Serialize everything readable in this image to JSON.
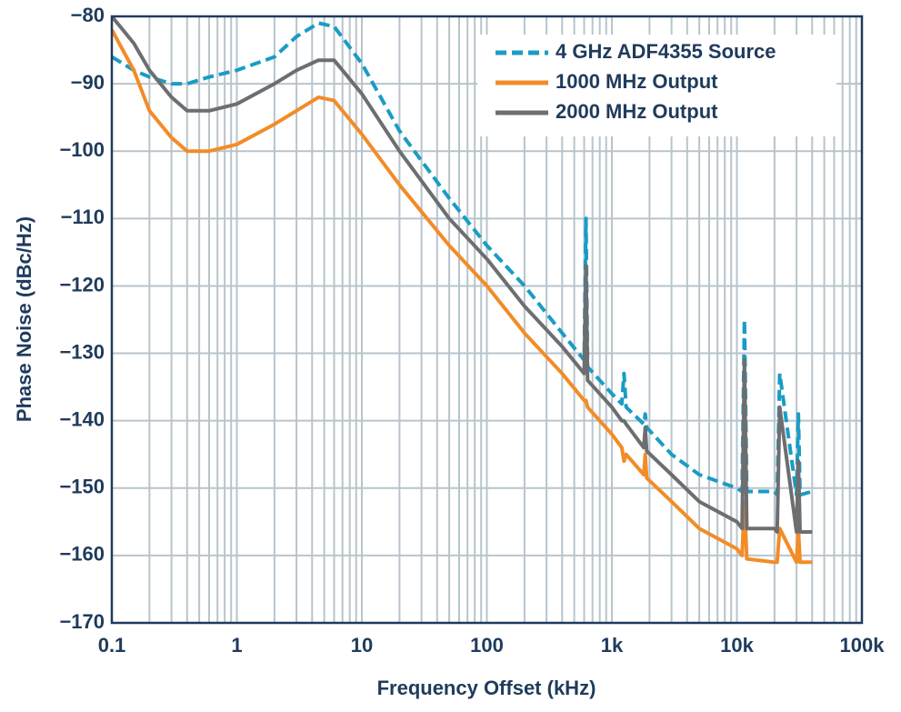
{
  "chart_data": {
    "type": "line",
    "x_label": "Frequency Offset (kHz)",
    "y_label": "Phase Noise (dBc/Hz)",
    "x_scale": "log",
    "xlim": [
      0.1,
      100000
    ],
    "ylim": [
      -170,
      -80
    ],
    "xticks": [
      0.1,
      1,
      10,
      100,
      {
        "value": 1000,
        "label": "1k"
      },
      {
        "value": 10000,
        "label": "10k"
      },
      {
        "value": 100000,
        "label": "100k"
      }
    ],
    "yticks": [
      {
        "value": -170,
        "label": "−170"
      },
      {
        "value": -160,
        "label": "−160"
      },
      {
        "value": -150,
        "label": "−150"
      },
      {
        "value": -140,
        "label": "−140"
      },
      {
        "value": -130,
        "label": "−130"
      },
      {
        "value": -120,
        "label": "−120"
      },
      {
        "value": -110,
        "label": "−110"
      },
      {
        "value": -100,
        "label": "−100"
      },
      {
        "value": -90,
        "label": "−90"
      },
      {
        "value": -80,
        "label": "−80"
      }
    ],
    "grid": true,
    "minor_grid": true,
    "legend": "upper right",
    "x": [
      0.1,
      0.15,
      0.2,
      0.3,
      0.4,
      0.6,
      1,
      2,
      3,
      4.5,
      6,
      10,
      20,
      50,
      100,
      200,
      400,
      600,
      620,
      640,
      1000,
      1200,
      1250,
      1300,
      1800,
      1850,
      1900,
      3000,
      5000,
      10000,
      11000,
      11500,
      12000,
      20000,
      21000,
      22000,
      30000,
      31000,
      32000,
      40000
    ],
    "series": [
      {
        "name": "4 GHz ADF4355 Source",
        "color": "#1a9cc4",
        "dash": true,
        "values": [
          -86,
          -88,
          -89,
          -90,
          -90,
          -89,
          -88,
          -86,
          -83,
          -81,
          -81.5,
          -87,
          -97,
          -107,
          -114,
          -120,
          -127,
          -131,
          -110,
          -132,
          -136,
          -137.5,
          -133,
          -138,
          -140.5,
          -139,
          -141,
          -145,
          -148,
          -150,
          -150.5,
          -125,
          -150.5,
          -150.5,
          -151,
          -133,
          -151,
          -139,
          -151,
          -150.5
        ]
      },
      {
        "name": "1000 MHz Output",
        "color": "#f28c28",
        "dash": false,
        "values": [
          -82,
          -88,
          -94,
          -98,
          -100,
          -100,
          -99,
          -96,
          -94,
          -92,
          -92.5,
          -97.5,
          -105,
          -114,
          -120,
          -127,
          -133,
          -137,
          -137,
          -138,
          -142,
          -144,
          -146,
          -145,
          -148,
          -145,
          -148.5,
          -152,
          -156,
          -159,
          -160,
          -152,
          -160.5,
          -161,
          -161,
          -156,
          -161,
          -156,
          -161,
          -161
        ]
      },
      {
        "name": "2000 MHz Output",
        "color": "#6d6e70",
        "dash": false,
        "values": [
          -80,
          -84,
          -88,
          -92,
          -94,
          -94,
          -93,
          -90,
          -88,
          -86.5,
          -86.5,
          -91.5,
          -100,
          -110,
          -116,
          -123,
          -129,
          -133,
          -117,
          -134,
          -138,
          -140,
          -140,
          -140.5,
          -144,
          -141,
          -144.5,
          -148,
          -152,
          -155,
          -156,
          -131,
          -156,
          -156,
          -156.5,
          -138,
          -156.5,
          -146,
          -156.5,
          -156.5
        ]
      }
    ]
  }
}
